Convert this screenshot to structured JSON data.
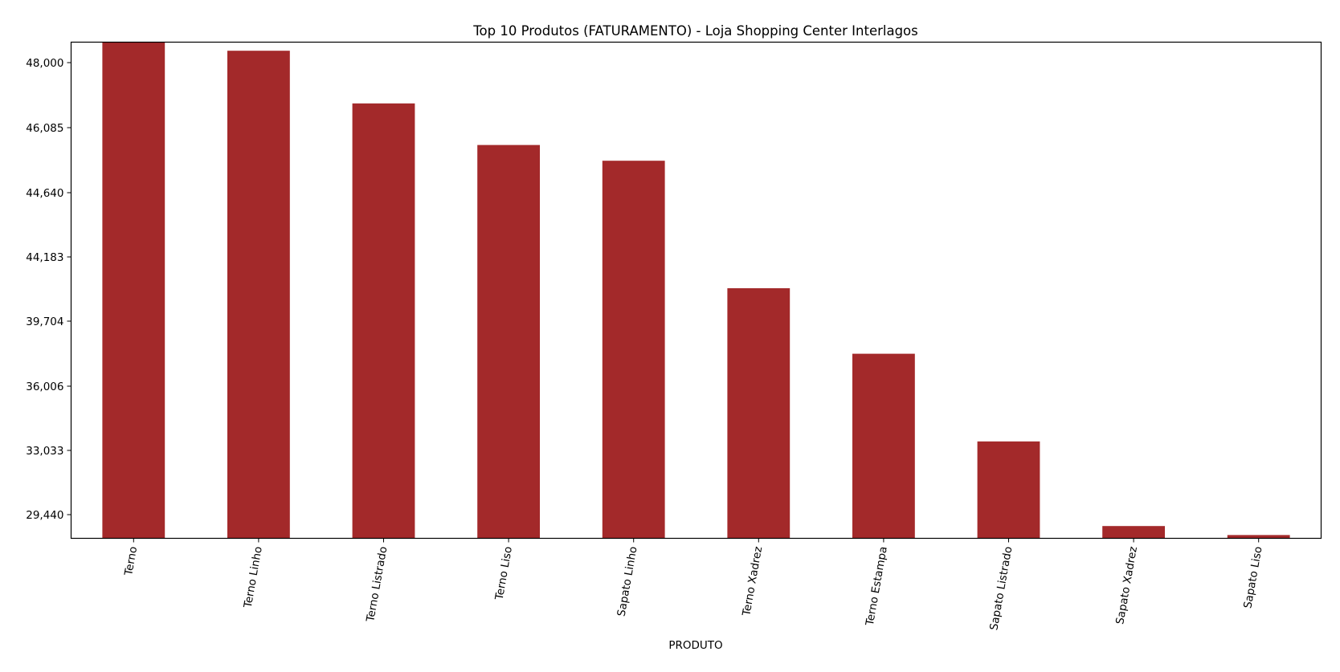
{
  "chart_data": {
    "type": "bar",
    "title": "Top 10 Produtos (FATURAMENTO) - Loja Shopping Center Interlagos",
    "xlabel": "PRODUTO",
    "ylabel": "",
    "categories": [
      "Terno",
      "Terno Linho",
      "Terno Listrado",
      "Terno Liso",
      "Sapato Linho",
      "Terno Xadrez",
      "Terno Estampa",
      "Sapato Listrado",
      "Sapato Xadrez",
      "Sapato Liso"
    ],
    "values": [
      48600,
      48350,
      46800,
      45700,
      45350,
      42000,
      37850,
      33450,
      28800,
      28300
    ],
    "yticks": [
      {
        "value": 29440,
        "label": "29,440"
      },
      {
        "value": 33033,
        "label": "33,033"
      },
      {
        "value": 36006,
        "label": "36,006"
      },
      {
        "value": 39704,
        "label": "39,704"
      },
      {
        "value": 44183,
        "label": "44,183"
      },
      {
        "value": 44640,
        "label": "44,640"
      },
      {
        "value": 46085,
        "label": "46,085"
      },
      {
        "value": 48000,
        "label": "48,000"
      }
    ],
    "bar_color": "#a3292a",
    "grid": false,
    "legend": false
  }
}
